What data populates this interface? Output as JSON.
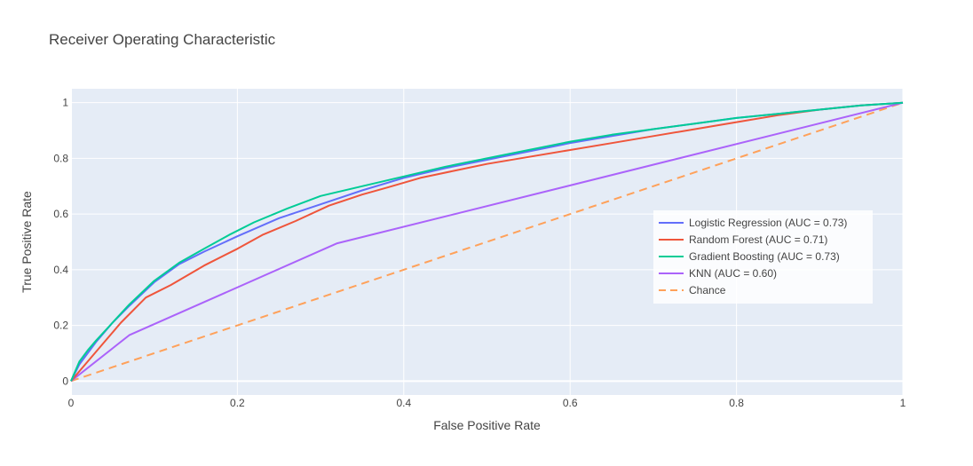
{
  "chart_data": {
    "type": "line",
    "title": "Receiver Operating Characteristic",
    "xlabel": "False Positive Rate",
    "ylabel": "True Positive Rate",
    "xlim": [
      0,
      1
    ],
    "ylim": [
      -0.05,
      1.05
    ],
    "x_ticks": [
      "0",
      "0.2",
      "0.4",
      "0.6",
      "0.8",
      "1"
    ],
    "y_ticks": [
      "0",
      "0.2",
      "0.4",
      "0.6",
      "0.8",
      "1"
    ],
    "grid": true,
    "legend_position": "right-middle",
    "background": "#E5ECF6",
    "series": [
      {
        "name": "Logistic Regression (AUC = 0.73)",
        "color": "#636EFA",
        "dash": "solid",
        "x": [
          0,
          0.01,
          0.02,
          0.03,
          0.05,
          0.07,
          0.1,
          0.13,
          0.16,
          0.2,
          0.25,
          0.3,
          0.35,
          0.4,
          0.45,
          0.5,
          0.55,
          0.6,
          0.65,
          0.7,
          0.75,
          0.8,
          0.85,
          0.9,
          0.95,
          1
        ],
        "y": [
          0,
          0.06,
          0.1,
          0.14,
          0.21,
          0.27,
          0.355,
          0.42,
          0.465,
          0.52,
          0.585,
          0.635,
          0.685,
          0.73,
          0.765,
          0.795,
          0.825,
          0.855,
          0.88,
          0.905,
          0.925,
          0.945,
          0.96,
          0.975,
          0.99,
          1
        ]
      },
      {
        "name": "Random Forest (AUC = 0.71)",
        "color": "#EF553B",
        "dash": "solid",
        "x": [
          0,
          0.02,
          0.04,
          0.06,
          0.09,
          0.12,
          0.16,
          0.2,
          0.23,
          0.27,
          0.31,
          0.35,
          0.38,
          0.42,
          0.46,
          0.5,
          0.55,
          0.6,
          0.65,
          0.7,
          0.75,
          0.8,
          0.85,
          0.9,
          0.95,
          1
        ],
        "y": [
          0,
          0.07,
          0.14,
          0.21,
          0.3,
          0.345,
          0.415,
          0.475,
          0.525,
          0.575,
          0.63,
          0.67,
          0.695,
          0.73,
          0.755,
          0.78,
          0.805,
          0.83,
          0.855,
          0.88,
          0.905,
          0.93,
          0.955,
          0.975,
          0.99,
          1
        ]
      },
      {
        "name": "Gradient Boosting (AUC = 0.73)",
        "color": "#00CC96",
        "dash": "solid",
        "x": [
          0,
          0.01,
          0.02,
          0.03,
          0.05,
          0.07,
          0.1,
          0.13,
          0.16,
          0.19,
          0.22,
          0.26,
          0.3,
          0.35,
          0.4,
          0.45,
          0.5,
          0.55,
          0.6,
          0.65,
          0.7,
          0.75,
          0.8,
          0.85,
          0.9,
          0.95,
          1
        ],
        "y": [
          0,
          0.07,
          0.11,
          0.145,
          0.21,
          0.275,
          0.36,
          0.425,
          0.475,
          0.525,
          0.57,
          0.62,
          0.665,
          0.7,
          0.735,
          0.77,
          0.8,
          0.83,
          0.86,
          0.885,
          0.905,
          0.925,
          0.945,
          0.96,
          0.975,
          0.99,
          1
        ]
      },
      {
        "name": "KNN (AUC = 0.60)",
        "color": "#AB63FA",
        "dash": "solid",
        "x": [
          0,
          0.07,
          0.32,
          1
        ],
        "y": [
          0,
          0.165,
          0.495,
          1
        ]
      },
      {
        "name": "Chance",
        "color": "#FFA15A",
        "dash": "dash",
        "x": [
          0,
          1
        ],
        "y": [
          0,
          1
        ]
      }
    ]
  }
}
